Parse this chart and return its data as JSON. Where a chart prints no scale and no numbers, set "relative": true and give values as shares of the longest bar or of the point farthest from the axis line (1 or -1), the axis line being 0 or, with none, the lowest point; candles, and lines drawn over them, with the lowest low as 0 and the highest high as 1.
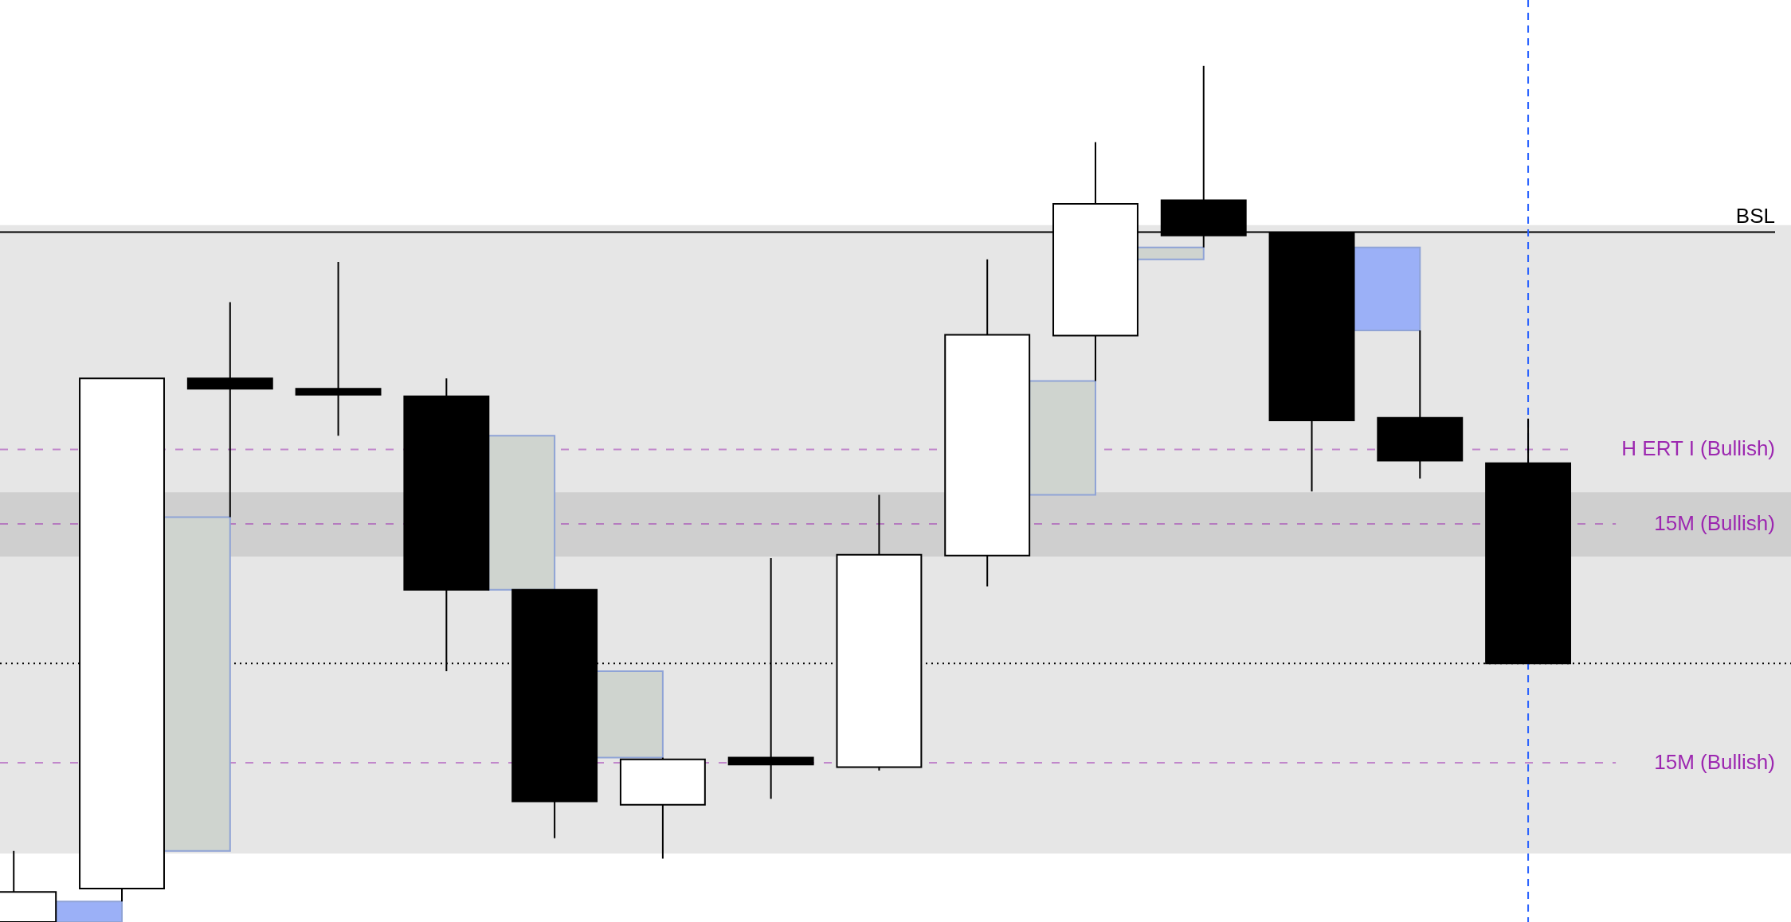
{
  "chart_data": {
    "type": "candlestick",
    "relative": true,
    "categories": [
      null,
      null,
      null,
      null,
      null,
      null,
      null,
      null,
      null,
      null,
      null,
      null,
      null,
      null,
      null
    ],
    "ohlc": [
      [
        0,
        0.083,
        0,
        0.035
      ],
      [
        0.039,
        0.635,
        0.024,
        0.635
      ],
      [
        0.635,
        0.724,
        0.473,
        0.623
      ],
      [
        0.623,
        0.771,
        0.568,
        0.616
      ],
      [
        0.614,
        0.635,
        0.293,
        0.388
      ],
      [
        0.388,
        0.388,
        0.098,
        0.141
      ],
      [
        0.137,
        0.192,
        0.074,
        0.19
      ],
      [
        0.192,
        0.425,
        0.144,
        0.184
      ],
      [
        0.181,
        0.499,
        0.177,
        0.429
      ],
      [
        0.428,
        0.774,
        0.392,
        0.686
      ],
      [
        0.685,
        0.911,
        0.632,
        0.839
      ],
      [
        0.843,
        1,
        0.788,
        0.802
      ],
      [
        0.805,
        0.805,
        0.503,
        0.586
      ],
      [
        0.589,
        0.691,
        0.518,
        0.539
      ],
      [
        0.536,
        0.588,
        0.302,
        0.302
      ]
    ],
    "colors": [
      "#ffffff",
      "#ffffff",
      "#000000",
      "#000000",
      "#000000",
      "#000000",
      "#ffffff",
      "#000000",
      "#ffffff",
      "#ffffff",
      "#ffffff",
      "#000000",
      "#000000",
      "#000000",
      "#000000"
    ],
    "series": [
      {
        "type": "bar",
        "base": [
          null,
          0,
          0.083,
          null,
          null,
          0.388,
          0.192,
          null,
          null,
          null,
          0.499,
          0.774,
          null,
          0.691,
          null
        ],
        "values": [
          null,
          0.024,
          0.39,
          null,
          null,
          0.18,
          0.101,
          null,
          null,
          null,
          0.133,
          0.014,
          null,
          0.097,
          null
        ],
        "colors": [
          null,
          "#9bb0f7",
          "#cfd4cf",
          null,
          null,
          "#cfd4cf",
          "#cfd4cf",
          null,
          null,
          null,
          "#cfd4cf",
          "#cfd4cf",
          null,
          "#9bb0f7",
          null
        ]
      }
    ],
    "bands": [
      {
        "axis": "y",
        "from": 0.291,
        "to": 0.814,
        "color": "#e6e6e6"
      },
      {
        "axis": "y",
        "from": 0.08,
        "to": 0.291,
        "color": "#e6e6e6"
      },
      {
        "axis": "y",
        "from": 0.427,
        "to": 0.502,
        "color": "#e6e6e6"
      }
    ],
    "ref_lines": [
      {
        "axis": "y",
        "value": 0.806,
        "label": "BSL",
        "color": "#000000",
        "line_style": "solid"
      },
      {
        "axis": "y",
        "value": 0.552,
        "label": "H ERT I (Bullish)",
        "color": "#9c27b0",
        "line_style": "dashed"
      },
      {
        "axis": "y",
        "value": 0.465,
        "label": "15M (Bullish)",
        "color": "#9c27b0",
        "line_style": "dashed"
      },
      {
        "axis": "y",
        "value": 0.186,
        "label": "15M (Bullish)",
        "color": "#9c27b0",
        "line_style": "dashed"
      },
      {
        "axis": "y",
        "value": 0.302,
        "color": "#000000",
        "line_style": "dotted"
      }
    ]
  }
}
